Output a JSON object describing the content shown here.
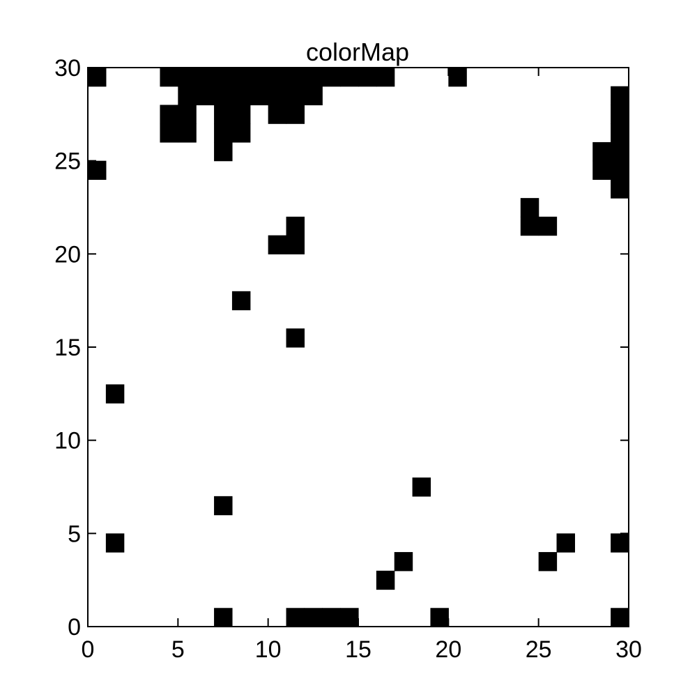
{
  "chart_data": {
    "type": "heatmap",
    "title": "colorMap",
    "xlabel": "",
    "ylabel": "",
    "xlim": [
      0,
      30
    ],
    "ylim": [
      0,
      30
    ],
    "x_ticks": [
      0,
      5,
      10,
      15,
      20,
      25,
      30
    ],
    "y_ticks": [
      0,
      5,
      10,
      15,
      20,
      25,
      30
    ],
    "grid": false,
    "cell_size": 1,
    "cell_color": "#000000",
    "background_color": "#ffffff",
    "filled_cells": [
      [
        0,
        29
      ],
      [
        4,
        29
      ],
      [
        5,
        29
      ],
      [
        6,
        29
      ],
      [
        7,
        29
      ],
      [
        8,
        29
      ],
      [
        9,
        29
      ],
      [
        10,
        29
      ],
      [
        11,
        29
      ],
      [
        12,
        29
      ],
      [
        13,
        29
      ],
      [
        14,
        29
      ],
      [
        15,
        29
      ],
      [
        16,
        29
      ],
      [
        20,
        29
      ],
      [
        5,
        28
      ],
      [
        6,
        28
      ],
      [
        7,
        28
      ],
      [
        8,
        28
      ],
      [
        9,
        28
      ],
      [
        10,
        28
      ],
      [
        11,
        28
      ],
      [
        12,
        28
      ],
      [
        29,
        28
      ],
      [
        4,
        27
      ],
      [
        5,
        27
      ],
      [
        7,
        27
      ],
      [
        8,
        27
      ],
      [
        10,
        27
      ],
      [
        11,
        27
      ],
      [
        29,
        27
      ],
      [
        4,
        26
      ],
      [
        5,
        26
      ],
      [
        7,
        26
      ],
      [
        8,
        26
      ],
      [
        29,
        26
      ],
      [
        7,
        25
      ],
      [
        28,
        25
      ],
      [
        29,
        25
      ],
      [
        0,
        24
      ],
      [
        28,
        24
      ],
      [
        29,
        24
      ],
      [
        29,
        23
      ],
      [
        24,
        22
      ],
      [
        11,
        21
      ],
      [
        24,
        21
      ],
      [
        25,
        21
      ],
      [
        10,
        20
      ],
      [
        11,
        20
      ],
      [
        8,
        17
      ],
      [
        11,
        15
      ],
      [
        1,
        12
      ],
      [
        18,
        7
      ],
      [
        7,
        6
      ],
      [
        1,
        4
      ],
      [
        26,
        4
      ],
      [
        29,
        4
      ],
      [
        17,
        3
      ],
      [
        25,
        3
      ],
      [
        16,
        2
      ],
      [
        7,
        0
      ],
      [
        11,
        0
      ],
      [
        12,
        0
      ],
      [
        13,
        0
      ],
      [
        14,
        0
      ],
      [
        19,
        0
      ],
      [
        29,
        0
      ]
    ]
  }
}
